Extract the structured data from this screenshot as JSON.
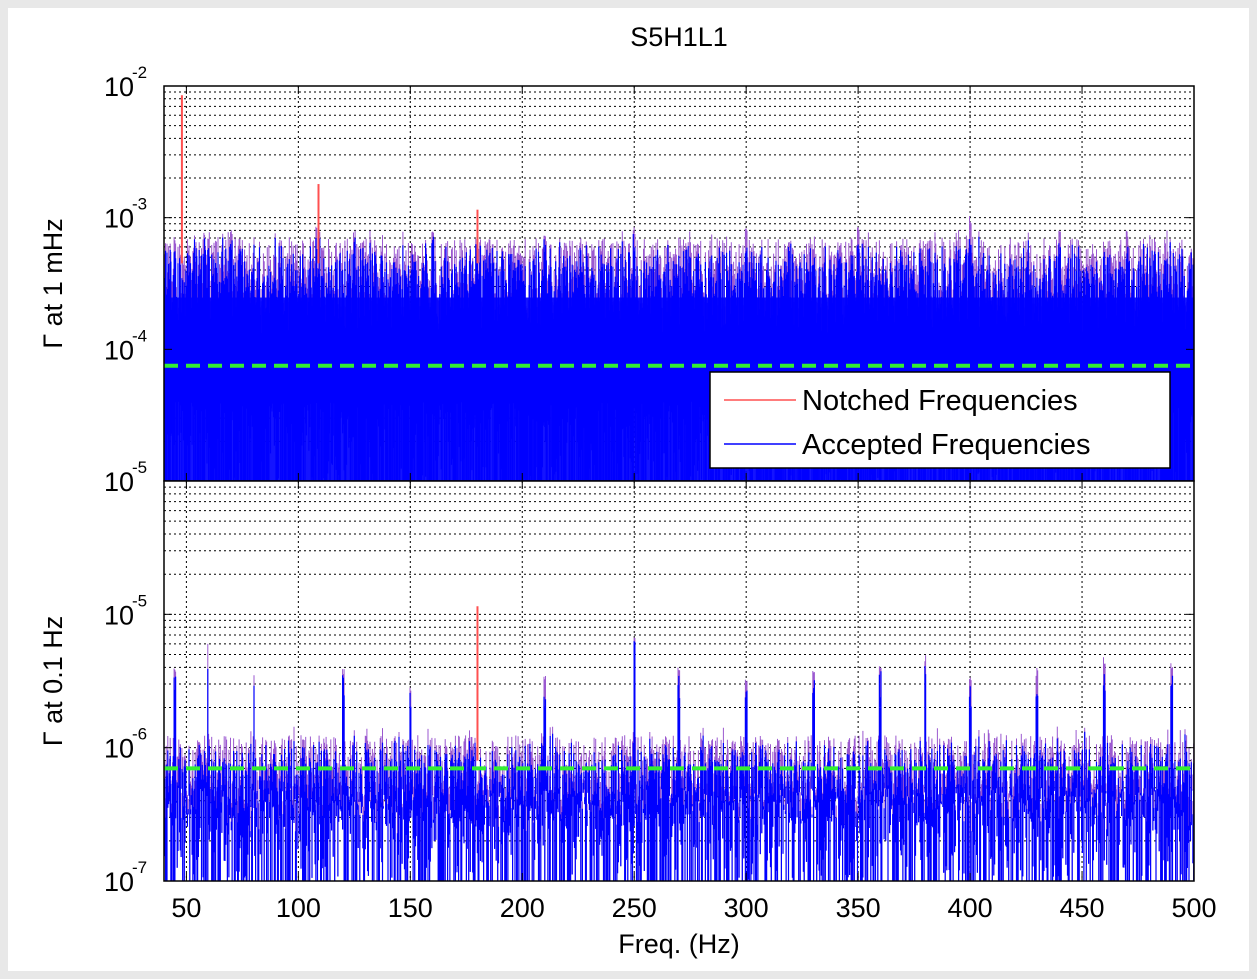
{
  "chart_data": [
    {
      "type": "line",
      "title": "S5H1L1",
      "ylabel": "Γ at 1 mHz",
      "xlabel": "",
      "xlim": [
        40,
        500
      ],
      "ylim": [
        1e-05,
        0.01
      ],
      "yscale": "log",
      "grid": true,
      "x_ticks": [
        50,
        100,
        150,
        200,
        250,
        300,
        350,
        400,
        450,
        500
      ],
      "y_ticks": [
        {
          "base": "10",
          "exp": "-5",
          "value": 1e-05
        },
        {
          "base": "10",
          "exp": "-4",
          "value": 0.0001
        },
        {
          "base": "10",
          "exp": "-3",
          "value": 0.001
        },
        {
          "base": "10",
          "exp": "-2",
          "value": 0.01
        }
      ],
      "threshold": 7.5e-05,
      "noise_floor": 1e-05,
      "accepted_typical": 0.00045,
      "accepted_peaks": [
        {
          "x": 45,
          "y": 0.0007
        },
        {
          "x": 58,
          "y": 0.0008
        },
        {
          "x": 70,
          "y": 0.00085
        },
        {
          "x": 108,
          "y": 0.0009
        },
        {
          "x": 125,
          "y": 0.0008
        },
        {
          "x": 160,
          "y": 0.0008
        },
        {
          "x": 210,
          "y": 0.0008
        },
        {
          "x": 250,
          "y": 0.00085
        },
        {
          "x": 300,
          "y": 0.00085
        },
        {
          "x": 350,
          "y": 0.00085
        },
        {
          "x": 400,
          "y": 0.00105
        },
        {
          "x": 440,
          "y": 0.0008
        },
        {
          "x": 470,
          "y": 0.0008
        }
      ],
      "notched_peaks": [
        {
          "x": 48,
          "y": 0.0085
        },
        {
          "x": 109,
          "y": 0.0018
        },
        {
          "x": 180,
          "y": 0.00115
        }
      ],
      "legend": {
        "position": "bottom-right",
        "entries": [
          {
            "label": "Notched Frequencies",
            "color": "#ff5050"
          },
          {
            "label": "Accepted Frequencies",
            "color": "#0000ff"
          }
        ]
      }
    },
    {
      "type": "line",
      "title": "",
      "ylabel": "Γ at 0.1 Hz",
      "xlabel": "Freq. (Hz)",
      "xlim": [
        40,
        500
      ],
      "ylim": [
        1e-07,
        0.0001
      ],
      "yscale": "log",
      "grid": true,
      "x_ticks": [
        50,
        100,
        150,
        200,
        250,
        300,
        350,
        400,
        450,
        500
      ],
      "y_ticks": [
        {
          "base": "10",
          "exp": "-7",
          "value": 1e-07
        },
        {
          "base": "10",
          "exp": "-6",
          "value": 1e-06
        },
        {
          "base": "10",
          "exp": "-5",
          "value": 1e-05
        }
      ],
      "threshold": 7e-07,
      "noise_floor": 1e-07,
      "accepted_typical": 8e-07,
      "accepted_peaks": [
        {
          "x": 45,
          "y": 4e-06
        },
        {
          "x": 60,
          "y": 7e-06
        },
        {
          "x": 80,
          "y": 3.5e-06
        },
        {
          "x": 120,
          "y": 4e-06
        },
        {
          "x": 150,
          "y": 3e-06
        },
        {
          "x": 210,
          "y": 3.5e-06
        },
        {
          "x": 250,
          "y": 7.5e-06
        },
        {
          "x": 270,
          "y": 4e-06
        },
        {
          "x": 300,
          "y": 3.5e-06
        },
        {
          "x": 330,
          "y": 4e-06
        },
        {
          "x": 360,
          "y": 4.5e-06
        },
        {
          "x": 380,
          "y": 5e-06
        },
        {
          "x": 400,
          "y": 3.5e-06
        },
        {
          "x": 430,
          "y": 4e-06
        },
        {
          "x": 460,
          "y": 5e-06
        },
        {
          "x": 490,
          "y": 4.5e-06
        }
      ],
      "notched_peaks": [
        {
          "x": 180,
          "y": 1.15e-05
        }
      ]
    }
  ],
  "colors": {
    "accepted": "#0000ff",
    "accepted_edge": "#9b59d0",
    "notched": "#ff5050",
    "threshold": "#33ee33",
    "grid": "#000000"
  }
}
